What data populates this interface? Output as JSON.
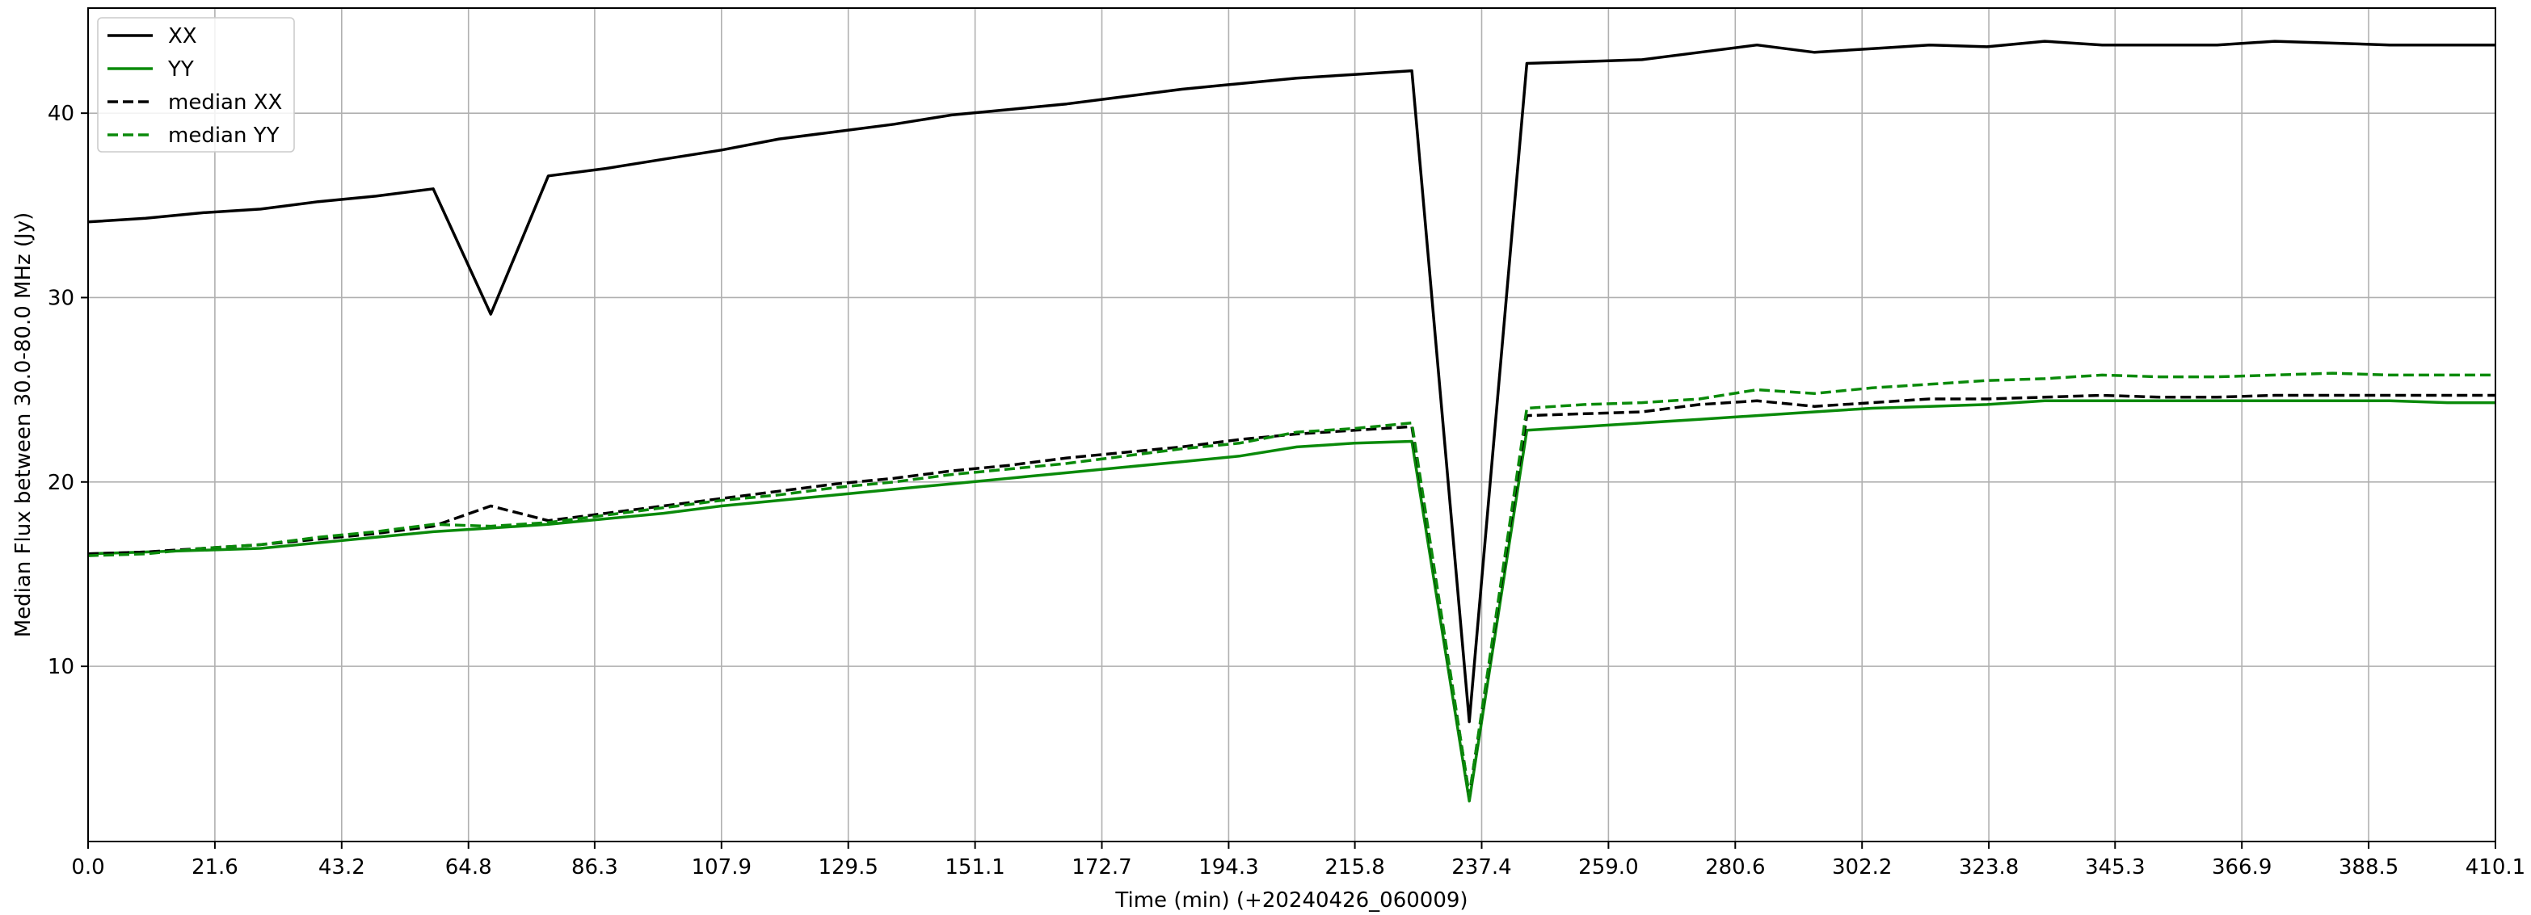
{
  "chart_data": {
    "type": "line",
    "xlabel": "Time (min) (+20240426_060009)",
    "ylabel": "Median Flux between 30.0-80.0 MHz  (Jy)",
    "xlim": [
      0,
      410.1
    ],
    "ylim": [
      0.5,
      45.7
    ],
    "xticks": [
      "0.0",
      "21.6",
      "43.2",
      "64.8",
      "86.3",
      "107.9",
      "129.5",
      "151.1",
      "172.7",
      "194.3",
      "215.8",
      "237.4",
      "259.0",
      "280.6",
      "302.2",
      "323.8",
      "345.3",
      "366.9",
      "388.5",
      "410.1"
    ],
    "yticks": [
      10,
      20,
      30,
      40
    ],
    "grid": true,
    "legend_position": "top-left",
    "x": [
      0.0,
      9.8,
      19.6,
      29.4,
      39.2,
      49.0,
      58.8,
      68.6,
      78.4,
      88.2,
      98.0,
      107.9,
      117.7,
      127.5,
      137.3,
      147.1,
      156.9,
      166.7,
      176.5,
      186.3,
      196.1,
      205.9,
      215.7,
      225.5,
      235.3,
      245.1,
      254.9,
      264.7,
      274.5,
      284.3,
      294.1,
      303.9,
      313.7,
      323.5,
      333.3,
      343.1,
      352.9,
      362.7,
      372.5,
      382.3,
      392.1,
      401.9,
      410.1
    ],
    "series": [
      {
        "name": "XX",
        "color": "#000000",
        "dash": "solid",
        "values": [
          34.1,
          34.3,
          34.6,
          34.8,
          35.2,
          35.5,
          35.9,
          29.1,
          36.6,
          37.0,
          37.5,
          38.0,
          38.6,
          39.0,
          39.4,
          39.9,
          40.2,
          40.5,
          40.9,
          41.3,
          41.6,
          41.9,
          42.1,
          42.3,
          7.0,
          42.7,
          42.8,
          42.9,
          43.3,
          43.7,
          43.3,
          43.5,
          43.7,
          43.6,
          43.9,
          43.7,
          43.7,
          43.7,
          43.9,
          43.8,
          43.7,
          43.7,
          43.7
        ]
      },
      {
        "name": "YY",
        "color": "#0a8a0a",
        "dash": "solid",
        "values": [
          16.1,
          16.2,
          16.3,
          16.4,
          16.7,
          17.0,
          17.3,
          17.5,
          17.7,
          18.0,
          18.3,
          18.7,
          19.0,
          19.3,
          19.6,
          19.9,
          20.2,
          20.5,
          20.8,
          21.1,
          21.4,
          21.9,
          22.1,
          22.2,
          2.7,
          22.8,
          23.0,
          23.2,
          23.4,
          23.6,
          23.8,
          24.0,
          24.1,
          24.2,
          24.4,
          24.4,
          24.4,
          24.4,
          24.4,
          24.4,
          24.4,
          24.3,
          24.3
        ]
      },
      {
        "name": "median XX",
        "color": "#000000",
        "dash": "dashed",
        "values": [
          16.1,
          16.2,
          16.4,
          16.6,
          16.9,
          17.2,
          17.6,
          18.7,
          17.9,
          18.3,
          18.7,
          19.1,
          19.5,
          19.9,
          20.2,
          20.6,
          20.9,
          21.3,
          21.6,
          21.9,
          22.3,
          22.6,
          22.8,
          23.0,
          3.0,
          23.6,
          23.7,
          23.8,
          24.2,
          24.4,
          24.1,
          24.3,
          24.5,
          24.5,
          24.6,
          24.7,
          24.6,
          24.6,
          24.7,
          24.7,
          24.7,
          24.7,
          24.7
        ]
      },
      {
        "name": "median YY",
        "color": "#0a8a0a",
        "dash": "dashed",
        "values": [
          16.0,
          16.1,
          16.4,
          16.6,
          17.0,
          17.3,
          17.7,
          17.6,
          17.8,
          18.2,
          18.6,
          19.0,
          19.3,
          19.7,
          20.0,
          20.4,
          20.7,
          21.0,
          21.4,
          21.8,
          22.1,
          22.7,
          22.9,
          23.2,
          3.0,
          24.0,
          24.2,
          24.3,
          24.5,
          25.0,
          24.8,
          25.1,
          25.3,
          25.5,
          25.6,
          25.8,
          25.7,
          25.7,
          25.8,
          25.9,
          25.8,
          25.8,
          25.8
        ]
      }
    ]
  }
}
